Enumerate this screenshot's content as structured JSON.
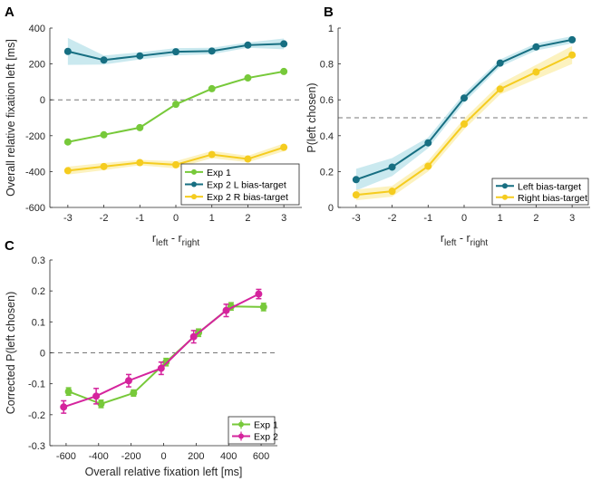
{
  "chart_data": [
    {
      "panel": "A",
      "type": "line",
      "x": [
        -3,
        -2,
        -1,
        0,
        1,
        2,
        3
      ],
      "xlim": [
        -3.5,
        3.5
      ],
      "ylim": [
        -600,
        400
      ],
      "xticks": [
        -3,
        -2,
        -1,
        0,
        1,
        2,
        3
      ],
      "yticks": [
        -600,
        -400,
        -200,
        0,
        200,
        400
      ],
      "xlabel": "r",
      "xlabel_sub1": "left",
      "xlabel_mid": " - r",
      "xlabel_sub2": "right",
      "ylabel": "Overall relative fixation left [ms]",
      "refline": 0,
      "legend_position": "bottom-right",
      "series": [
        {
          "name": "Exp 1",
          "color": "#77c93a",
          "values": [
            -235,
            -195,
            -155,
            -25,
            62,
            122,
            158
          ],
          "band": null
        },
        {
          "name": "Exp 2 L bias-target",
          "color": "#176f82",
          "band_color": "#b8e2ea",
          "values": [
            270,
            222,
            245,
            268,
            272,
            305,
            312
          ],
          "band": [
            75,
            25,
            20,
            20,
            18,
            15,
            30
          ]
        },
        {
          "name": "Exp 2 R bias-target",
          "color": "#f5cc1f",
          "band_color": "#fbeeaa",
          "values": [
            -395,
            -372,
            -350,
            -362,
            -305,
            -330,
            -265
          ],
          "band": [
            22,
            20,
            15,
            20,
            20,
            18,
            22
          ]
        }
      ]
    },
    {
      "panel": "B",
      "type": "line",
      "x": [
        -3,
        -2,
        -1,
        0,
        1,
        2,
        3
      ],
      "xlim": [
        -3.5,
        3.5
      ],
      "ylim": [
        0,
        1
      ],
      "xticks": [
        -3,
        -2,
        -1,
        0,
        1,
        2,
        3
      ],
      "yticks": [
        0,
        0.2,
        0.4,
        0.6,
        0.8,
        1
      ],
      "xlabel": "r",
      "xlabel_sub1": "left",
      "xlabel_mid": " - r",
      "xlabel_sub2": "right",
      "ylabel": "P(left chosen)",
      "refline": 0.5,
      "legend_position": "bottom-right",
      "series": [
        {
          "name": "Left bias-target",
          "color": "#176f82",
          "band_color": "#b8e2ea",
          "values": [
            0.155,
            0.225,
            0.36,
            0.61,
            0.805,
            0.895,
            0.935
          ],
          "band": [
            0.06,
            0.05,
            0.03,
            0.025,
            0.02,
            0.02,
            0.02
          ]
        },
        {
          "name": "Right bias-target",
          "color": "#f5cc1f",
          "band_color": "#fbeeaa",
          "values": [
            0.07,
            0.09,
            0.23,
            0.465,
            0.66,
            0.755,
            0.85
          ],
          "band": [
            0.03,
            0.03,
            0.03,
            0.03,
            0.03,
            0.04,
            0.05
          ]
        }
      ]
    },
    {
      "panel": "C",
      "type": "line",
      "x": [
        -600,
        -400,
        -200,
        0,
        200,
        400,
        600
      ],
      "xlim": [
        -700,
        700
      ],
      "ylim": [
        -0.3,
        0.3
      ],
      "xticks": [
        -600,
        -400,
        -200,
        0,
        200,
        400,
        600
      ],
      "yticks": [
        -0.3,
        -0.2,
        -0.1,
        0,
        0.1,
        0.2,
        0.3
      ],
      "xlabel": "Overall relative fixation left [ms]",
      "ylabel": "Corrected P(left chosen)",
      "refline": 0,
      "legend_position": "bottom-right",
      "series": [
        {
          "name": "Exp 1",
          "color": "#77c93a",
          "values": [
            -0.125,
            -0.165,
            -0.13,
            -0.03,
            0.065,
            0.15,
            0.148
          ],
          "err": [
            0.012,
            0.012,
            0.01,
            0.012,
            0.012,
            0.012,
            0.012
          ],
          "xoffset": 15
        },
        {
          "name": "Exp 2",
          "color": "#d5249d",
          "values": [
            -0.175,
            -0.14,
            -0.09,
            -0.05,
            0.052,
            0.137,
            0.19
          ],
          "err": [
            0.02,
            0.025,
            0.02,
            0.02,
            0.02,
            0.02,
            0.015
          ],
          "xoffset": -15
        }
      ]
    }
  ]
}
